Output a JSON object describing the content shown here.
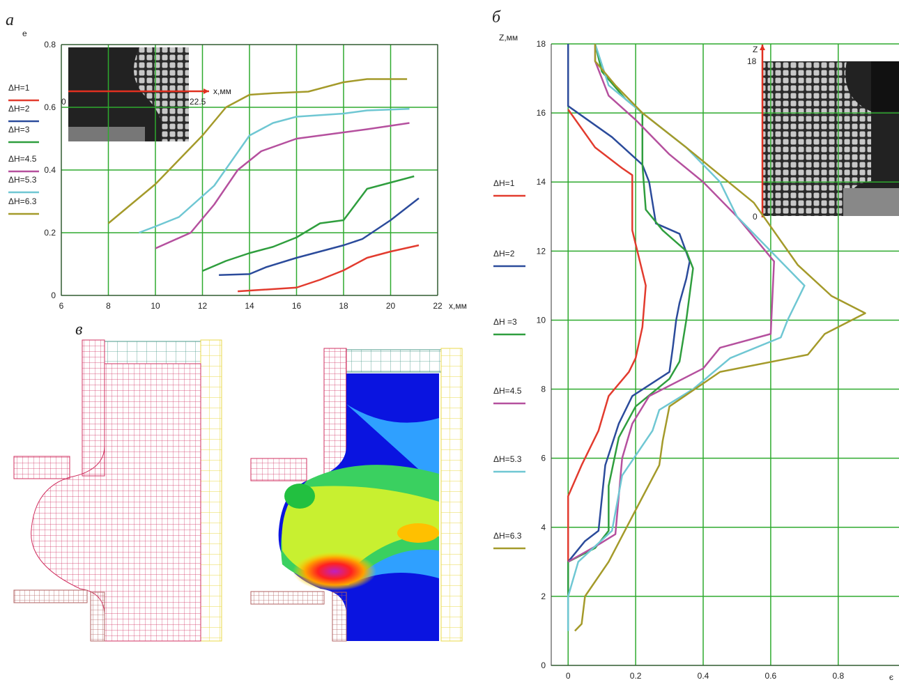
{
  "chart_data": [
    {
      "type": "line",
      "title": "а",
      "x_label": "x,мм",
      "y_label": "e",
      "xlim": [
        6,
        22
      ],
      "xticks": [
        6,
        8,
        10,
        12,
        14,
        16,
        18,
        20,
        22
      ],
      "ylim": [
        0,
        0.8
      ],
      "yticks": [
        0,
        0.2,
        0.4,
        0.6,
        0.8
      ],
      "grid": true,
      "grid_color": "#2eaa2e",
      "annotations": [
        "x,мм",
        "0",
        "22.5"
      ],
      "series": [
        {
          "name": "ΔH=1",
          "color": "#e23b2e",
          "x": [
            13.5,
            16,
            17,
            18,
            19,
            20,
            21.2
          ],
          "values": [
            0.013,
            0.025,
            0.05,
            0.08,
            0.12,
            0.14,
            0.16
          ]
        },
        {
          "name": "ΔH=2",
          "color": "#2b4b9b",
          "x": [
            12.7,
            14,
            14.7,
            16,
            17,
            18,
            18.8,
            20,
            21.2
          ],
          "values": [
            0.065,
            0.068,
            0.09,
            0.12,
            0.14,
            0.16,
            0.18,
            0.24,
            0.31
          ]
        },
        {
          "name": "ΔH=3",
          "color": "#2f9e3e",
          "x": [
            12,
            13,
            14,
            15,
            16,
            17,
            18,
            19,
            20,
            21
          ],
          "values": [
            0.078,
            0.11,
            0.135,
            0.155,
            0.185,
            0.23,
            0.24,
            0.34,
            0.36,
            0.38
          ]
        },
        {
          "name": "ΔH=4.5",
          "color": "#b5509e",
          "x": [
            10,
            11.5,
            12.5,
            13.5,
            14.5,
            16,
            18,
            19,
            20.8
          ],
          "values": [
            0.15,
            0.2,
            0.29,
            0.4,
            0.46,
            0.5,
            0.52,
            0.53,
            0.55
          ]
        },
        {
          "name": "ΔH=5.3",
          "color": "#6fc7d3",
          "x": [
            9.3,
            10,
            11,
            12.5,
            14,
            15,
            16,
            18,
            19,
            20.8
          ],
          "values": [
            0.2,
            0.22,
            0.25,
            0.35,
            0.51,
            0.55,
            0.57,
            0.58,
            0.59,
            0.595
          ]
        },
        {
          "name": "ΔH=6.3",
          "color": "#a49a2a",
          "x": [
            8,
            10,
            12,
            13,
            14,
            15,
            16.5,
            18,
            19,
            20.7
          ],
          "values": [
            0.23,
            0.355,
            0.51,
            0.6,
            0.64,
            0.645,
            0.65,
            0.68,
            0.69,
            0.69
          ]
        }
      ]
    },
    {
      "type": "line",
      "title": "б",
      "x_label": "є",
      "y_label": "Z,мм",
      "xlim": [
        -0.05,
        0.98
      ],
      "xticks": [
        0,
        0.2,
        0.4,
        0.6,
        0.8
      ],
      "ylim": [
        0,
        18
      ],
      "yticks": [
        0,
        2,
        4,
        6,
        8,
        10,
        12,
        14,
        16,
        18
      ],
      "grid": true,
      "grid_color": "#2eaa2e",
      "annotations": [
        "Z",
        "18",
        "0"
      ],
      "series": [
        {
          "name": "ΔH=1",
          "color": "#e23b2e",
          "x": [
            0,
            0,
            0.04,
            0.09,
            0.12,
            0.18,
            0.2,
            0.22,
            0.23,
            0.2,
            0.19,
            0.19,
            0.16,
            0.08,
            0
          ],
          "values": [
            3,
            4.9,
            5.8,
            6.8,
            7.8,
            8.5,
            8.9,
            9.8,
            11,
            12.2,
            12.6,
            14.2,
            14.4,
            15,
            16.1
          ]
        },
        {
          "name": "ΔH=2",
          "color": "#2b4b9b",
          "x": [
            0,
            0,
            0.05,
            0.09,
            0.11,
            0.15,
            0.19,
            0.3,
            0.31,
            0.32,
            0.33,
            0.35,
            0.36,
            0.33,
            0.26,
            0.24,
            0.22,
            0.13,
            0,
            0
          ],
          "values": [
            1,
            3,
            3.6,
            3.9,
            5.8,
            7,
            7.8,
            8.5,
            9.2,
            10,
            10.5,
            11.2,
            11.7,
            12.5,
            12.8,
            14,
            14.5,
            15.3,
            16.2,
            18
          ]
        },
        {
          "name": "ΔH =3",
          "color": "#2f9e3e",
          "x": [
            0,
            0,
            0.08,
            0.12,
            0.12,
            0.15,
            0.2,
            0.3,
            0.33,
            0.35,
            0.37,
            0.35,
            0.28,
            0.23,
            0.22,
            0.22,
            0.17,
            0.1,
            0.08
          ],
          "values": [
            1,
            3,
            3.4,
            3.9,
            5.2,
            6.6,
            7.5,
            8.3,
            8.8,
            10,
            11.5,
            12,
            12.6,
            13.2,
            14.5,
            16,
            16.4,
            17.2,
            18
          ]
        },
        {
          "name": "ΔH=4.5",
          "color": "#b5509e",
          "x": [
            0,
            0.09,
            0.14,
            0.16,
            0.19,
            0.24,
            0.4,
            0.45,
            0.6,
            0.61,
            0.5,
            0.4,
            0.3,
            0.2,
            0.12,
            0.08,
            0.08
          ],
          "values": [
            3,
            3.5,
            3.8,
            6,
            7,
            7.8,
            8.6,
            9.2,
            9.6,
            11.7,
            13,
            14,
            14.8,
            15.8,
            16.5,
            17.5,
            18
          ]
        },
        {
          "name": "ΔH=5.3",
          "color": "#6fc7d3",
          "x": [
            0,
            0,
            0.03,
            0.13,
            0.16,
            0.25,
            0.27,
            0.37,
            0.48,
            0.63,
            0.65,
            0.7,
            0.6,
            0.5,
            0.45,
            0.35,
            0.22,
            0.12,
            0.08
          ],
          "values": [
            1,
            2,
            3,
            3.9,
            5.5,
            6.8,
            7.4,
            8,
            8.9,
            9.5,
            10,
            11,
            12,
            13,
            14,
            15,
            16,
            16.8,
            18
          ]
        },
        {
          "name": "ΔH=6.3",
          "color": "#a49a2a",
          "x": [
            0.02,
            0.04,
            0.05,
            0.12,
            0.2,
            0.27,
            0.28,
            0.3,
            0.45,
            0.71,
            0.76,
            0.88,
            0.78,
            0.68,
            0.55,
            0.45,
            0.35,
            0.22,
            0.14,
            0.08,
            0.08
          ],
          "values": [
            1,
            1.2,
            2,
            3,
            4.5,
            5.8,
            6.5,
            7.5,
            8.5,
            9,
            9.6,
            10.2,
            10.7,
            11.6,
            13.4,
            14.2,
            15,
            16,
            16.8,
            17.5,
            18
          ]
        }
      ]
    }
  ],
  "diagram": {
    "label": "в"
  }
}
